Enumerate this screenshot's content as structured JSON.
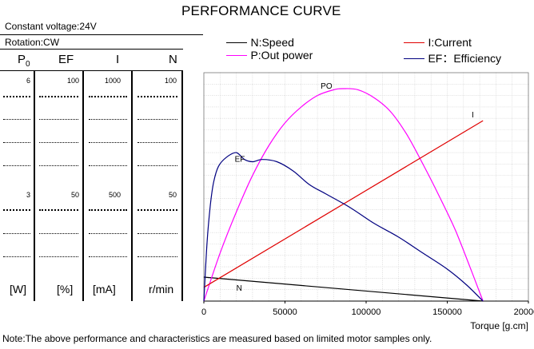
{
  "title": "PERFORMANCE CURVE",
  "conditions": {
    "voltage": "Constant voltage:24V",
    "rotation": "Rotation:CW"
  },
  "columns": [
    {
      "symbol": "P",
      "sub": "0",
      "unit": "[W]",
      "top": "6",
      "mid": "3"
    },
    {
      "symbol": "EF",
      "unit": "[%]",
      "top": "100",
      "mid": "50"
    },
    {
      "symbol": "I",
      "unit": "[mA]",
      "top": "1000",
      "mid": "500"
    },
    {
      "symbol": "N",
      "unit": "r/min",
      "top": "100",
      "mid": "50"
    }
  ],
  "legend": [
    {
      "label": "N:Speed",
      "color": "#000000"
    },
    {
      "label": "P:Out power",
      "color": "#ff00ff"
    },
    {
      "label": "I:Current",
      "color": "#e00000"
    },
    {
      "label": "EF：Efficiency",
      "color": "#000080"
    }
  ],
  "note": "Note:The above performance and characteristics are measured based on limited motor samples only.",
  "chart_data": {
    "type": "line",
    "xlabel": "Torque [g.cm]",
    "xlim": [
      0,
      200000
    ],
    "xticks": [
      "0",
      "50000",
      "100000",
      "150000",
      "200000"
    ],
    "ylim": [
      0,
      100
    ],
    "y_units": "percent of each column scale (P0 6W, EF 100%, I 1000mA, N 100r/min)",
    "series": [
      {
        "name": "N:Speed",
        "curve_label": "N",
        "color": "#000000",
        "points": [
          [
            0,
            10.5
          ],
          [
            172000,
            0
          ]
        ]
      },
      {
        "name": "P:Out power",
        "curve_label": "PO",
        "color": "#ff00ff",
        "points": [
          [
            0,
            0
          ],
          [
            10000,
            21
          ],
          [
            20000,
            39
          ],
          [
            30000,
            55
          ],
          [
            40000,
            68
          ],
          [
            50000,
            78
          ],
          [
            60000,
            85
          ],
          [
            70000,
            90
          ],
          [
            80000,
            92.5
          ],
          [
            86000,
            93
          ],
          [
            95000,
            92.5
          ],
          [
            105000,
            89
          ],
          [
            115000,
            83
          ],
          [
            125000,
            73
          ],
          [
            135000,
            60
          ],
          [
            145000,
            46
          ],
          [
            155000,
            31
          ],
          [
            165000,
            13
          ],
          [
            172000,
            0
          ]
        ]
      },
      {
        "name": "I:Current",
        "curve_label": "I",
        "color": "#e00000",
        "points": [
          [
            0,
            6
          ],
          [
            172000,
            79
          ]
        ]
      },
      {
        "name": "EF:Efficiency",
        "curve_label": "EF",
        "color": "#000080",
        "points": [
          [
            0,
            0
          ],
          [
            2000,
            26
          ],
          [
            4000,
            42
          ],
          [
            6000,
            52
          ],
          [
            9000,
            59
          ],
          [
            14000,
            63
          ],
          [
            20000,
            65
          ],
          [
            25000,
            62
          ],
          [
            30000,
            61
          ],
          [
            36000,
            62
          ],
          [
            45000,
            61
          ],
          [
            55000,
            57
          ],
          [
            65000,
            51
          ],
          [
            75000,
            47
          ],
          [
            90000,
            41
          ],
          [
            105000,
            34
          ],
          [
            120000,
            28
          ],
          [
            135000,
            21
          ],
          [
            150000,
            14
          ],
          [
            162000,
            7
          ],
          [
            172000,
            0
          ]
        ]
      }
    ]
  }
}
